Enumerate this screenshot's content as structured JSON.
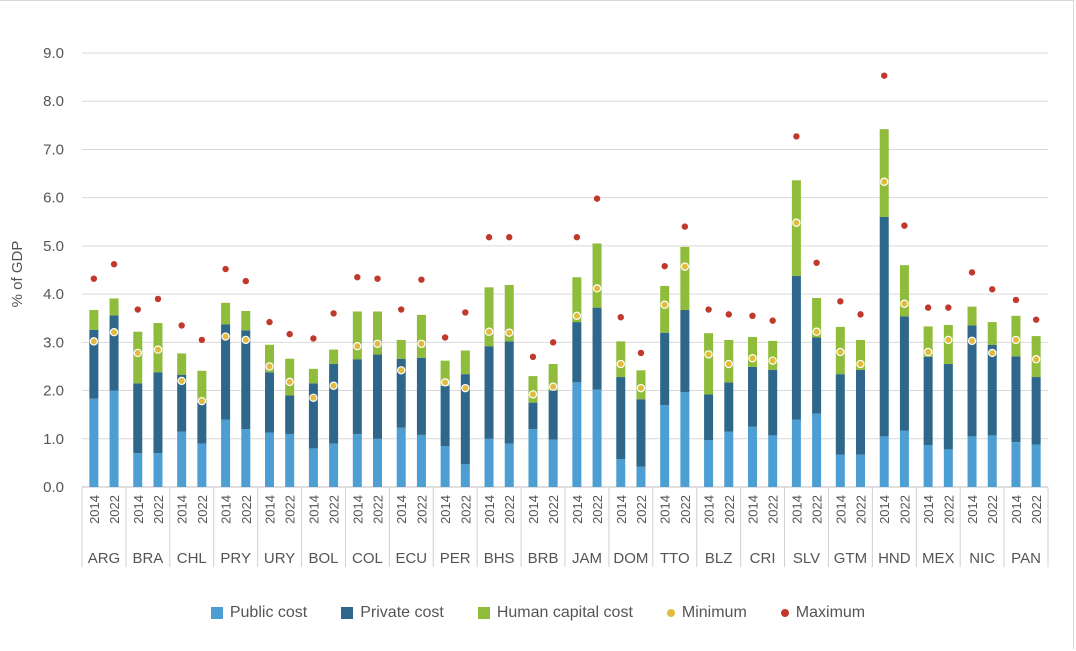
{
  "chart_data": {
    "type": "stacked-bar-with-markers",
    "ylabel": "% of GDP",
    "ylim": [
      0,
      9
    ],
    "yticks": [
      "0.0",
      "1.0",
      "2.0",
      "3.0",
      "4.0",
      "5.0",
      "6.0",
      "7.0",
      "8.0",
      "9.0"
    ],
    "grid": true,
    "legend_position": "bottom",
    "years": [
      "2014",
      "2022"
    ],
    "countries": [
      "ARG",
      "BRA",
      "CHL",
      "PRY",
      "URY",
      "BOL",
      "COL",
      "ECU",
      "PER",
      "BHS",
      "BRB",
      "JAM",
      "DOM",
      "TTO",
      "BLZ",
      "CRI",
      "SLV",
      "GTM",
      "HND",
      "MEX",
      "NIC",
      "PAN"
    ],
    "colors": {
      "public": "#4d9fd3",
      "private": "#2e6789",
      "human": "#8fbc3a",
      "minimum": "#e0bb3f",
      "maximum": "#c0392b"
    },
    "series_names": [
      "Public cost",
      "Private cost",
      "Human capital cost",
      "Minimum",
      "Maximum"
    ],
    "bars": [
      {
        "country": "ARG",
        "year": "2014",
        "public": 1.83,
        "private": 1.43,
        "human": 0.41,
        "minimum": 3.02,
        "maximum": 4.32
      },
      {
        "country": "ARG",
        "year": "2022",
        "public": 2.0,
        "private": 1.56,
        "human": 0.35,
        "minimum": 3.21,
        "maximum": 4.62
      },
      {
        "country": "BRA",
        "year": "2014",
        "public": 0.7,
        "private": 1.45,
        "human": 1.07,
        "minimum": 2.78,
        "maximum": 3.68
      },
      {
        "country": "BRA",
        "year": "2022",
        "public": 0.7,
        "private": 1.68,
        "human": 1.02,
        "minimum": 2.85,
        "maximum": 3.9
      },
      {
        "country": "CHL",
        "year": "2014",
        "public": 1.15,
        "private": 1.18,
        "human": 0.44,
        "minimum": 2.2,
        "maximum": 3.35
      },
      {
        "country": "CHL",
        "year": "2022",
        "public": 0.9,
        "private": 0.85,
        "human": 0.66,
        "minimum": 1.78,
        "maximum": 3.05
      },
      {
        "country": "PRY",
        "year": "2014",
        "public": 1.4,
        "private": 1.97,
        "human": 0.45,
        "minimum": 3.12,
        "maximum": 4.52
      },
      {
        "country": "PRY",
        "year": "2022",
        "public": 1.2,
        "private": 2.05,
        "human": 0.4,
        "minimum": 3.05,
        "maximum": 4.27
      },
      {
        "country": "URY",
        "year": "2014",
        "public": 1.13,
        "private": 1.25,
        "human": 0.57,
        "minimum": 2.5,
        "maximum": 3.42
      },
      {
        "country": "URY",
        "year": "2022",
        "public": 1.1,
        "private": 0.8,
        "human": 0.76,
        "minimum": 2.18,
        "maximum": 3.17
      },
      {
        "country": "BOL",
        "year": "2014",
        "public": 0.8,
        "private": 1.35,
        "human": 0.3,
        "minimum": 1.85,
        "maximum": 3.08
      },
      {
        "country": "BOL",
        "year": "2022",
        "public": 0.9,
        "private": 1.65,
        "human": 0.3,
        "minimum": 2.1,
        "maximum": 3.6
      },
      {
        "country": "COL",
        "year": "2014",
        "public": 1.1,
        "private": 1.55,
        "human": 0.99,
        "minimum": 2.92,
        "maximum": 4.35
      },
      {
        "country": "COL",
        "year": "2022",
        "public": 1.0,
        "private": 1.75,
        "human": 0.89,
        "minimum": 2.97,
        "maximum": 4.32
      },
      {
        "country": "ECU",
        "year": "2014",
        "public": 1.23,
        "private": 1.43,
        "human": 0.39,
        "minimum": 2.42,
        "maximum": 3.68
      },
      {
        "country": "ECU",
        "year": "2022",
        "public": 1.08,
        "private": 1.6,
        "human": 0.89,
        "minimum": 2.97,
        "maximum": 4.3
      },
      {
        "country": "PER",
        "year": "2014",
        "public": 0.85,
        "private": 1.25,
        "human": 0.52,
        "minimum": 2.17,
        "maximum": 3.1
      },
      {
        "country": "PER",
        "year": "2022",
        "public": 0.47,
        "private": 1.87,
        "human": 0.49,
        "minimum": 2.05,
        "maximum": 3.62
      },
      {
        "country": "BHS",
        "year": "2014",
        "public": 1.0,
        "private": 1.92,
        "human": 1.22,
        "minimum": 3.22,
        "maximum": 5.18
      },
      {
        "country": "BHS",
        "year": "2022",
        "public": 0.9,
        "private": 2.12,
        "human": 1.17,
        "minimum": 3.2,
        "maximum": 5.18
      },
      {
        "country": "BRB",
        "year": "2014",
        "public": 1.2,
        "private": 0.55,
        "human": 0.55,
        "minimum": 1.92,
        "maximum": 2.7
      },
      {
        "country": "BRB",
        "year": "2022",
        "public": 0.98,
        "private": 1.02,
        "human": 0.55,
        "minimum": 2.08,
        "maximum": 3.0
      },
      {
        "country": "JAM",
        "year": "2014",
        "public": 2.17,
        "private": 1.25,
        "human": 0.93,
        "minimum": 3.55,
        "maximum": 5.18
      },
      {
        "country": "JAM",
        "year": "2022",
        "public": 2.02,
        "private": 1.7,
        "human": 1.33,
        "minimum": 4.12,
        "maximum": 5.98
      },
      {
        "country": "DOM",
        "year": "2014",
        "public": 0.58,
        "private": 1.7,
        "human": 0.74,
        "minimum": 2.55,
        "maximum": 3.52
      },
      {
        "country": "DOM",
        "year": "2022",
        "public": 0.42,
        "private": 1.4,
        "human": 0.6,
        "minimum": 2.05,
        "maximum": 2.78
      },
      {
        "country": "TTO",
        "year": "2014",
        "public": 1.7,
        "private": 1.5,
        "human": 0.97,
        "minimum": 3.78,
        "maximum": 4.58
      },
      {
        "country": "TTO",
        "year": "2022",
        "public": 1.97,
        "private": 1.7,
        "human": 1.31,
        "minimum": 4.57,
        "maximum": 5.4
      },
      {
        "country": "BLZ",
        "year": "2014",
        "public": 0.97,
        "private": 0.95,
        "human": 1.27,
        "minimum": 2.75,
        "maximum": 3.68
      },
      {
        "country": "BLZ",
        "year": "2022",
        "public": 1.15,
        "private": 1.02,
        "human": 0.88,
        "minimum": 2.55,
        "maximum": 3.58
      },
      {
        "country": "CRI",
        "year": "2014",
        "public": 1.25,
        "private": 1.24,
        "human": 0.62,
        "minimum": 2.67,
        "maximum": 3.55
      },
      {
        "country": "CRI",
        "year": "2022",
        "public": 1.07,
        "private": 1.36,
        "human": 0.6,
        "minimum": 2.62,
        "maximum": 3.45
      },
      {
        "country": "SLV",
        "year": "2014",
        "public": 1.4,
        "private": 2.98,
        "human": 1.98,
        "minimum": 5.48,
        "maximum": 7.27
      },
      {
        "country": "SLV",
        "year": "2022",
        "public": 1.52,
        "private": 1.58,
        "human": 0.82,
        "minimum": 3.22,
        "maximum": 4.65
      },
      {
        "country": "GTM",
        "year": "2014",
        "public": 0.67,
        "private": 1.67,
        "human": 0.98,
        "minimum": 2.8,
        "maximum": 3.85
      },
      {
        "country": "GTM",
        "year": "2022",
        "public": 0.67,
        "private": 1.76,
        "human": 0.62,
        "minimum": 2.55,
        "maximum": 3.58
      },
      {
        "country": "HND",
        "year": "2014",
        "public": 1.05,
        "private": 4.55,
        "human": 1.82,
        "minimum": 6.33,
        "maximum": 8.53
      },
      {
        "country": "HND",
        "year": "2022",
        "public": 1.17,
        "private": 2.37,
        "human": 1.06,
        "minimum": 3.8,
        "maximum": 5.42
      },
      {
        "country": "MEX",
        "year": "2014",
        "public": 0.87,
        "private": 1.83,
        "human": 0.63,
        "minimum": 2.8,
        "maximum": 3.72
      },
      {
        "country": "MEX",
        "year": "2022",
        "public": 0.78,
        "private": 1.77,
        "human": 0.81,
        "minimum": 3.05,
        "maximum": 3.72
      },
      {
        "country": "NIC",
        "year": "2014",
        "public": 1.05,
        "private": 2.3,
        "human": 0.39,
        "minimum": 3.03,
        "maximum": 4.45
      },
      {
        "country": "NIC",
        "year": "2022",
        "public": 1.07,
        "private": 1.88,
        "human": 0.47,
        "minimum": 2.78,
        "maximum": 4.1
      },
      {
        "country": "PAN",
        "year": "2014",
        "public": 0.93,
        "private": 1.78,
        "human": 0.84,
        "minimum": 3.05,
        "maximum": 3.88
      },
      {
        "country": "PAN",
        "year": "2022",
        "public": 0.88,
        "private": 1.4,
        "human": 0.85,
        "minimum": 2.65,
        "maximum": 3.47
      }
    ]
  },
  "legend": {
    "public_label": "Public cost",
    "private_label": "Private cost",
    "human_label": "Human capital cost",
    "minimum_label": "Minimum",
    "maximum_label": "Maximum"
  }
}
